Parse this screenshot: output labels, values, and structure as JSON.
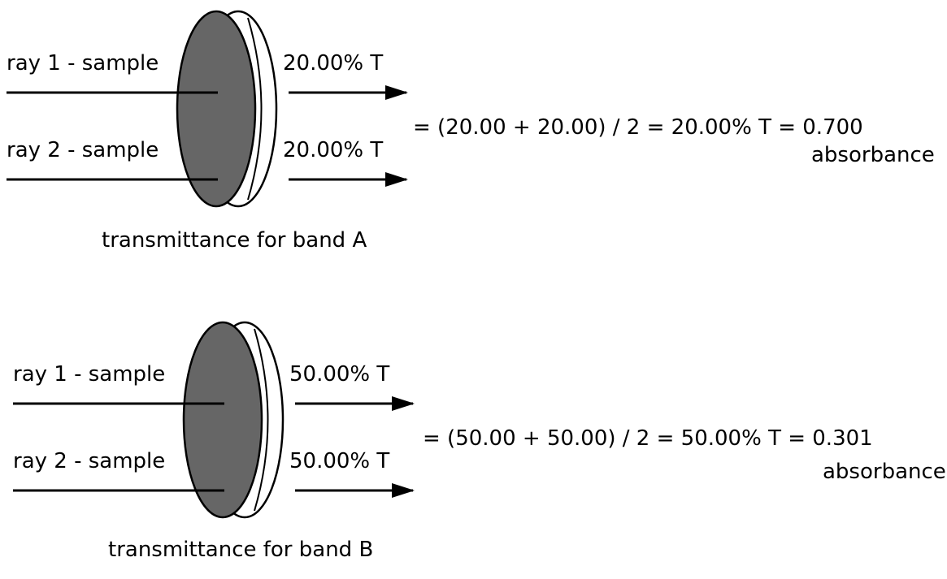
{
  "panels": [
    {
      "ray1_label": "ray 1 - sample",
      "ray2_label": "ray 2 - sample",
      "ray1_transmittance": "20.00% T",
      "ray2_transmittance": "20.00% T",
      "equation": "= (20.00 + 20.00) / 2 = 20.00% T = 0.700",
      "unit": "absorbance",
      "caption": "transmittance for band A"
    },
    {
      "ray1_label": "ray 1 - sample",
      "ray2_label": "ray 2 - sample",
      "ray1_transmittance": "50.00% T",
      "ray2_transmittance": "50.00% T",
      "equation": "= (50.00 + 50.00) / 2 = 50.00% T = 0.301",
      "unit": "absorbance",
      "caption": "transmittance for band B"
    }
  ],
  "colors": {
    "sample_fill": "#666666",
    "stroke": "#000000",
    "background": "#ffffff"
  }
}
